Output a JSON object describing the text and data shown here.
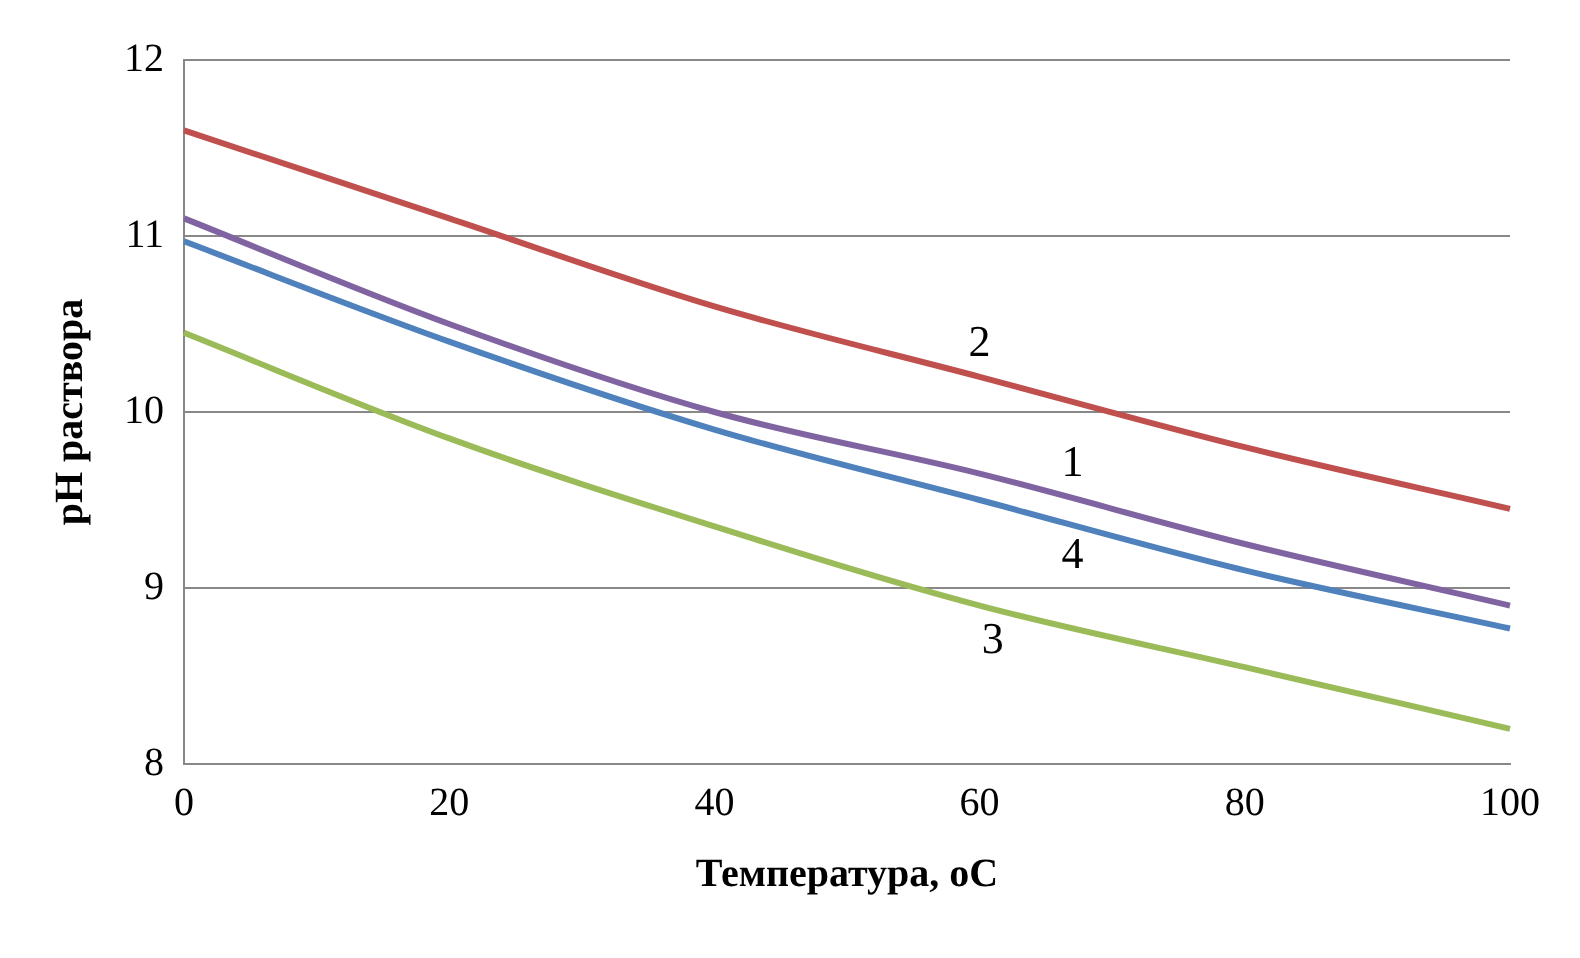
{
  "chart_data": {
    "type": "line",
    "xlabel": "Температура, оС",
    "ylabel": "pH раствора",
    "x": [
      0,
      20,
      40,
      60,
      80,
      100
    ],
    "series": [
      {
        "color": "#8064a2",
        "values": [
          11.1,
          10.5,
          10.0,
          9.65,
          9.25,
          8.9
        ]
      },
      {
        "color": "#c0504d",
        "values": [
          11.6,
          11.1,
          10.6,
          10.2,
          9.8,
          9.45
        ]
      },
      {
        "color": "#9bbb59",
        "values": [
          10.45,
          9.85,
          9.35,
          8.9,
          8.55,
          8.2
        ]
      },
      {
        "color": "#4f81bd",
        "values": [
          10.97,
          10.4,
          9.9,
          9.5,
          9.1,
          8.77
        ]
      }
    ],
    "xlim": [
      0,
      100
    ],
    "xticks": [
      0,
      20,
      40,
      60,
      80,
      100
    ],
    "ylim": [
      8,
      12
    ],
    "yticks": [
      8,
      9,
      10,
      11,
      12
    ],
    "grid": "y",
    "legend": false,
    "marker": "none",
    "annotations": [
      {
        "text": "2",
        "x": 60,
        "y": 10.2
      },
      {
        "text": "1",
        "x": 67,
        "y": 9.52
      },
      {
        "text": "4",
        "x": 67,
        "y": 9.36
      },
      {
        "text": "3",
        "x": 61,
        "y": 8.88
      }
    ]
  }
}
